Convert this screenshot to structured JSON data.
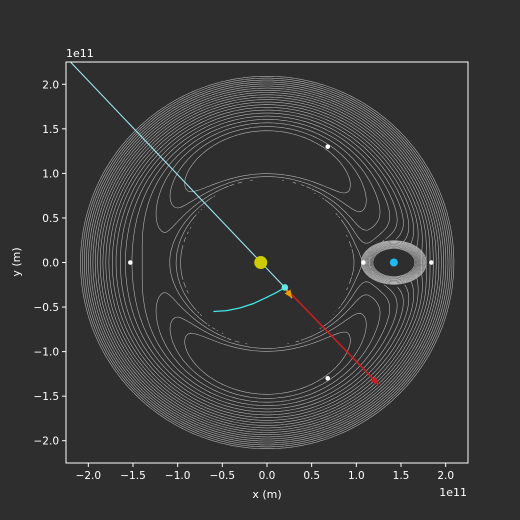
{
  "chart_data": {
    "type": "scatter",
    "title": "",
    "xlabel": "x (m)",
    "ylabel": "y (m)",
    "offset_label_x": "1e11",
    "offset_label_y": "1e11",
    "xlim": [
      -2.25,
      2.25
    ],
    "ylim": [
      -2.25,
      2.25
    ],
    "unit_multiplier": 100000000000.0,
    "xticks": [
      -2.0,
      -1.5,
      -1.0,
      -0.5,
      0.0,
      0.5,
      1.0,
      1.5,
      2.0
    ],
    "yticks": [
      -2.0,
      -1.5,
      -1.0,
      -0.5,
      0.0,
      0.5,
      1.0,
      1.5,
      2.0
    ],
    "xtick_labels": [
      "−2.0",
      "−1.5",
      "−1.0",
      "−0.5",
      "0.0",
      "0.5",
      "1.0",
      "1.5",
      "2.0"
    ],
    "ytick_labels": [
      "−2.0",
      "−1.5",
      "−1.0",
      "−0.5",
      "0.0",
      "0.5",
      "1.0",
      "1.5",
      "2.0"
    ],
    "grid": false,
    "background_color": "#2e2e2e",
    "axes_color": "#ffffff",
    "contour_color": "#b4b4b4",
    "primary_body": {
      "x": -0.07,
      "y": 0.0,
      "color": "#cccc00"
    },
    "secondary_body": {
      "x": 1.42,
      "y": 0.0,
      "color": "#22b8f0"
    },
    "lagrange_points": [
      {
        "x": -1.53,
        "y": 0.0
      },
      {
        "x": 1.08,
        "y": 0.0
      },
      {
        "x": 1.84,
        "y": 0.0
      },
      {
        "x": 0.68,
        "y": 1.3
      },
      {
        "x": 0.68,
        "y": -1.3
      }
    ],
    "spacecraft": {
      "x": 0.2,
      "y": -0.28,
      "color": "#5ee8e8"
    },
    "direction_line": {
      "from": [
        -2.2,
        2.25
      ],
      "to": [
        0.2,
        -0.28
      ],
      "color": "#9ee8f0"
    },
    "trail": {
      "color": "#40e8e8",
      "points": [
        [
          -0.6,
          -0.55
        ],
        [
          -0.45,
          -0.54
        ],
        [
          -0.3,
          -0.51
        ],
        [
          -0.15,
          -0.46
        ],
        [
          -0.02,
          -0.4
        ],
        [
          0.1,
          -0.34
        ],
        [
          0.2,
          -0.28
        ]
      ]
    },
    "velocity_arrow": {
      "from": [
        0.2,
        -0.28
      ],
      "to": [
        0.28,
        -0.4
      ],
      "color": "#e8a000"
    },
    "acceleration_arrow": {
      "from": [
        0.2,
        -0.28
      ],
      "to": [
        1.25,
        -1.37
      ],
      "color": "#c81e1e"
    },
    "contour_fields": {
      "inner_levels": 14,
      "outer_levels": 22
    }
  }
}
